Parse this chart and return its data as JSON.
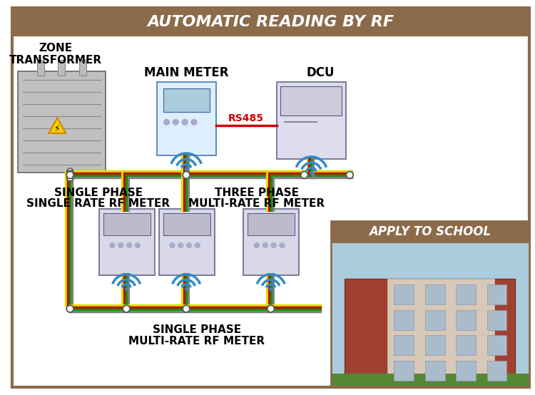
{
  "title": "AUTOMATIC READING BY RF",
  "title_bg": "#8B6B4A",
  "title_color": "#FFFFFF",
  "bg_color": "#FFFFFF",
  "border_color": "#8B6B4A",
  "labels": {
    "zone_transformer": [
      "ZONE",
      "TRANSFORMER"
    ],
    "main_meter": "MAIN METER",
    "dcu": "DCU",
    "rs485": "RS485",
    "single_phase_single_1": "SINGLE PHASE",
    "single_phase_single_2": "SINGLE RATE RF METER",
    "three_phase_1": "THREE PHASE",
    "three_phase_2": "MULTI-RATE RF METER",
    "single_phase_multi_1": "SINGLE PHASE",
    "single_phase_multi_2": "MULTI-RATE RF METER",
    "apply_to_school": "APPLY TO SCHOOL"
  },
  "wifi_color": "#3388CC",
  "rs485_color": "#CC0000",
  "wire_colors": [
    "#DDDD00",
    "#CC0000",
    "#009900",
    "#CC0000",
    "#808080"
  ],
  "apply_box_bg": "#8B6B4A",
  "apply_text_color": "#FFFFFF",
  "title_fontsize": 16,
  "label_fontsize": 11,
  "apply_title_fontsize": 12
}
